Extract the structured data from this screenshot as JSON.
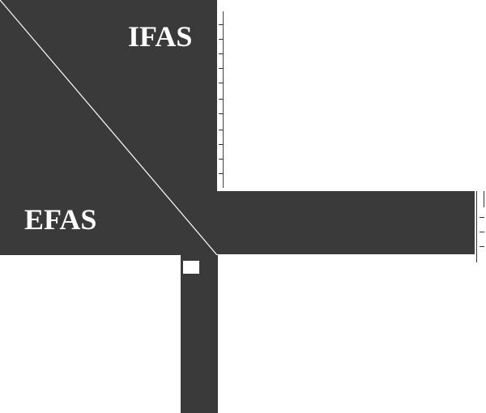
{
  "colors": {
    "panel": "#3a3a3a",
    "line": "#ffffff",
    "background": "#ffffff"
  },
  "matrix": {
    "ifas_label": "IFAS",
    "efas_label": "EFAS",
    "bottom_left_label": "",
    "bottom_center_label": "",
    "column_fragment": "",
    "row_fragment": ""
  }
}
